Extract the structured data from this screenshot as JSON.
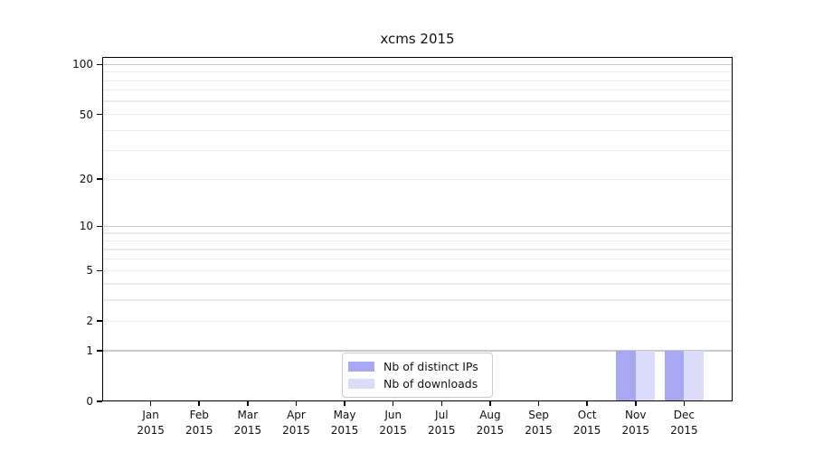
{
  "chart_data": {
    "type": "bar",
    "title": "xcms 2015",
    "categories": [
      "Jan",
      "Feb",
      "Mar",
      "Apr",
      "May",
      "Jun",
      "Jul",
      "Aug",
      "Sep",
      "Oct",
      "Nov",
      "Dec"
    ],
    "category_year": "2015",
    "series": [
      {
        "name": "Nb of distinct IPs",
        "color": "#a8a8f2",
        "values": [
          0,
          0,
          0,
          0,
          0,
          0,
          0,
          0,
          0,
          0,
          1,
          1
        ]
      },
      {
        "name": "Nb of downloads",
        "color": "#dbdbfa",
        "values": [
          0,
          0,
          0,
          0,
          0,
          0,
          0,
          0,
          0,
          0,
          1,
          1
        ]
      }
    ],
    "xlabel": "",
    "ylabel": "",
    "y_scale": "log1p",
    "ylim": [
      0,
      111
    ],
    "y_tick_labels": [
      0,
      1,
      2,
      5,
      10,
      20,
      50,
      100
    ],
    "y_major_gridlines": [
      1,
      10,
      100
    ],
    "y_minor_gridlines": [
      2,
      3,
      4,
      5,
      6,
      7,
      8,
      9,
      20,
      30,
      40,
      50,
      60,
      70,
      80,
      90
    ],
    "grid": true,
    "legend": {
      "position": "lower center",
      "entries": [
        "Nb of distinct IPs",
        "Nb of downloads"
      ]
    },
    "colors": {
      "axis": "#000000",
      "major_grid": "#c8c8c8",
      "minor_grid": "#ececec",
      "background": "#ffffff"
    }
  }
}
